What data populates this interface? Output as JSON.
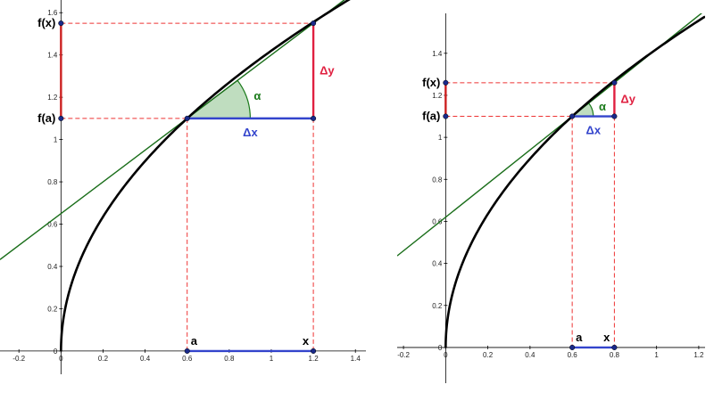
{
  "panels": [
    {
      "xlim": [
        -0.29,
        1.45
      ],
      "ylim": [
        -0.11,
        1.66
      ],
      "xticks": [
        -0.2,
        0,
        0.2,
        0.4,
        0.6,
        0.8,
        1,
        1.2,
        1.4
      ],
      "yticks": [
        0,
        0.2,
        0.4,
        0.6,
        0.8,
        1,
        1.2,
        1.4,
        1.6
      ],
      "a": 0.6,
      "fa": 1.1,
      "x": 1.2,
      "fx": 1.55,
      "labels": {
        "fx": "f(x)",
        "fa": "f(a)",
        "a": "a",
        "x": "x",
        "dx": "Δx",
        "dy": "Δy",
        "alpha": "α"
      }
    },
    {
      "xlim": [
        -0.23,
        1.23
      ],
      "ylim": [
        -0.17,
        1.59
      ],
      "xticks": [
        -0.2,
        0,
        0.2,
        0.4,
        0.6,
        0.8,
        1,
        1.2
      ],
      "yticks": [
        0,
        0.2,
        0.4,
        0.6,
        0.8,
        1,
        1.2,
        1.4
      ],
      "a": 0.6,
      "fa": 1.1,
      "x": 0.8,
      "fx": 1.26,
      "labels": {
        "fx": "f(x)",
        "fa": "f(a)",
        "a": "a",
        "x": "x",
        "dx": "Δx",
        "dy": "Δy",
        "alpha": "α"
      }
    }
  ]
}
